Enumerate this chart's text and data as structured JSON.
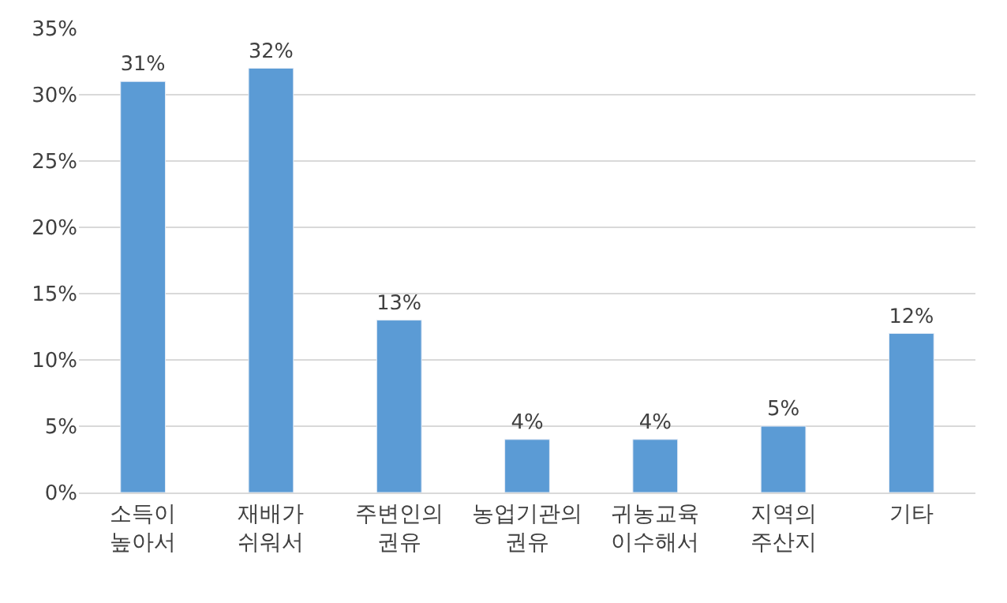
{
  "chart_data": {
    "type": "bar",
    "categories": [
      "소득이\n높아서",
      "재배가\n쉬워서",
      "주변인의\n권유",
      "농업기관의\n권유",
      "귀농교육\n이수해서",
      "지역의\n주산지",
      "기타"
    ],
    "values": [
      31,
      32,
      13,
      4,
      4,
      5,
      12
    ],
    "value_labels": [
      "31%",
      "32%",
      "13%",
      "4%",
      "4%",
      "5%",
      "12%"
    ],
    "color": "#5b9bd5",
    "ylim": [
      0,
      35
    ],
    "yticks": [
      {
        "value": 0,
        "label": "0%"
      },
      {
        "value": 5,
        "label": "5%"
      },
      {
        "value": 10,
        "label": "10%"
      },
      {
        "value": 15,
        "label": "15%"
      },
      {
        "value": 20,
        "label": "20%"
      },
      {
        "value": 25,
        "label": "25%"
      },
      {
        "value": 30,
        "label": "30%"
      },
      {
        "value": 35,
        "label": "35%"
      }
    ],
    "grid": "y"
  }
}
